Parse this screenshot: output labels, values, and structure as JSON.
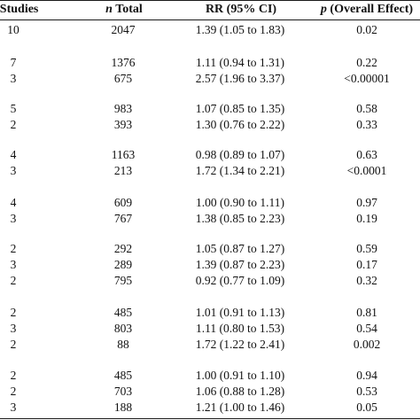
{
  "header": {
    "studies": "of Studies",
    "ntotal_italic": "n",
    "ntotal_rest": " Total",
    "rr": "RR (95% CI)",
    "p_italic": "p",
    "p_rest": " (Overall Effect)"
  },
  "rows": [
    {
      "studies": "10",
      "ntotal": "2047",
      "rr": "1.39 (1.05 to 1.83)",
      "p": "0.02"
    },
    {
      "studies": "7",
      "ntotal": "1376",
      "rr": "1.11 (0.94 to 1.31)",
      "p": "0.22"
    },
    {
      "studies": "3",
      "ntotal": "675",
      "rr": "2.57 (1.96 to 3.37)",
      "p": "<0.00001"
    },
    {
      "studies": "5",
      "ntotal": "983",
      "rr": "1.07 (0.85 to 1.35)",
      "p": "0.58"
    },
    {
      "studies": "2",
      "ntotal": "393",
      "rr": "1.30 (0.76 to 2.22)",
      "p": "0.33"
    },
    {
      "studies": "4",
      "ntotal": "1163",
      "rr": "0.98 (0.89 to 1.07)",
      "p": "0.63"
    },
    {
      "studies": "3",
      "ntotal": "213",
      "rr": "1.72 (1.34 to 2.21)",
      "p": "<0.0001"
    },
    {
      "studies": "4",
      "ntotal": "609",
      "rr": "1.00 (0.90 to 1.11)",
      "p": "0.97"
    },
    {
      "studies": "3",
      "ntotal": "767",
      "rr": "1.38 (0.85 to 2.23)",
      "p": "0.19"
    },
    {
      "studies": "2",
      "ntotal": "292",
      "rr": "1.05 (0.87 to 1.27)",
      "p": "0.59"
    },
    {
      "studies": "3",
      "ntotal": "289",
      "rr": "1.39 (0.87 to 2.23)",
      "p": "0.17"
    },
    {
      "studies": "2",
      "ntotal": "795",
      "rr": "0.92 (0.77 to 1.09)",
      "p": "0.32"
    },
    {
      "studies": "2",
      "ntotal": "485",
      "rr": "1.01 (0.91 to 1.13)",
      "p": "0.81"
    },
    {
      "studies": "3",
      "ntotal": "803",
      "rr": "1.11 (0.80 to 1.53)",
      "p": "0.54"
    },
    {
      "studies": "2",
      "ntotal": "88",
      "rr": "1.72 (1.22 to 2.41)",
      "p": "0.002"
    },
    {
      "studies": "2",
      "ntotal": "485",
      "rr": "1.00 (0.91 to 1.10)",
      "p": "0.94"
    },
    {
      "studies": "2",
      "ntotal": "703",
      "rr": "1.06 (0.88 to 1.28)",
      "p": "0.53"
    },
    {
      "studies": "3",
      "ntotal": "188",
      "rr": "1.21 (1.00 to 1.46)",
      "p": "0.05"
    }
  ]
}
